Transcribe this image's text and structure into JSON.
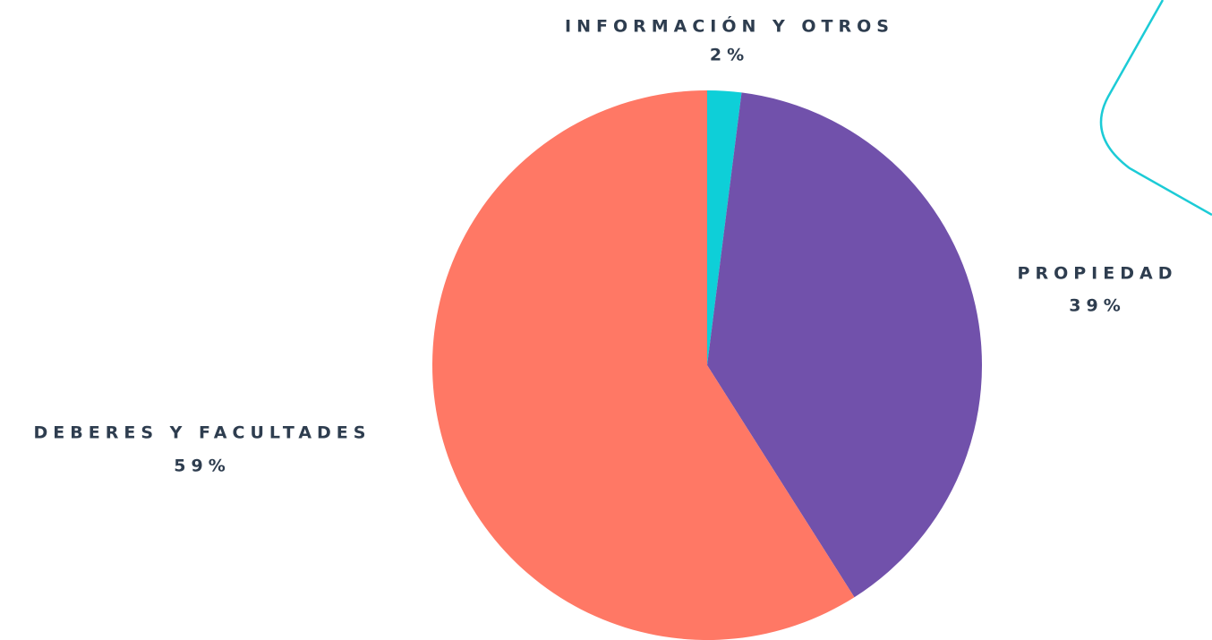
{
  "chart_data": {
    "type": "pie",
    "categories": [
      "INFORMACIÓN Y OTROS",
      "PROPIEDAD",
      "DEBERES Y FACULTADES"
    ],
    "values": [
      2,
      39,
      59
    ],
    "value_labels": [
      "2%",
      "39%",
      "59%"
    ],
    "colors": [
      "#0ecfd8",
      "#7151ab",
      "#ff7865"
    ]
  }
}
